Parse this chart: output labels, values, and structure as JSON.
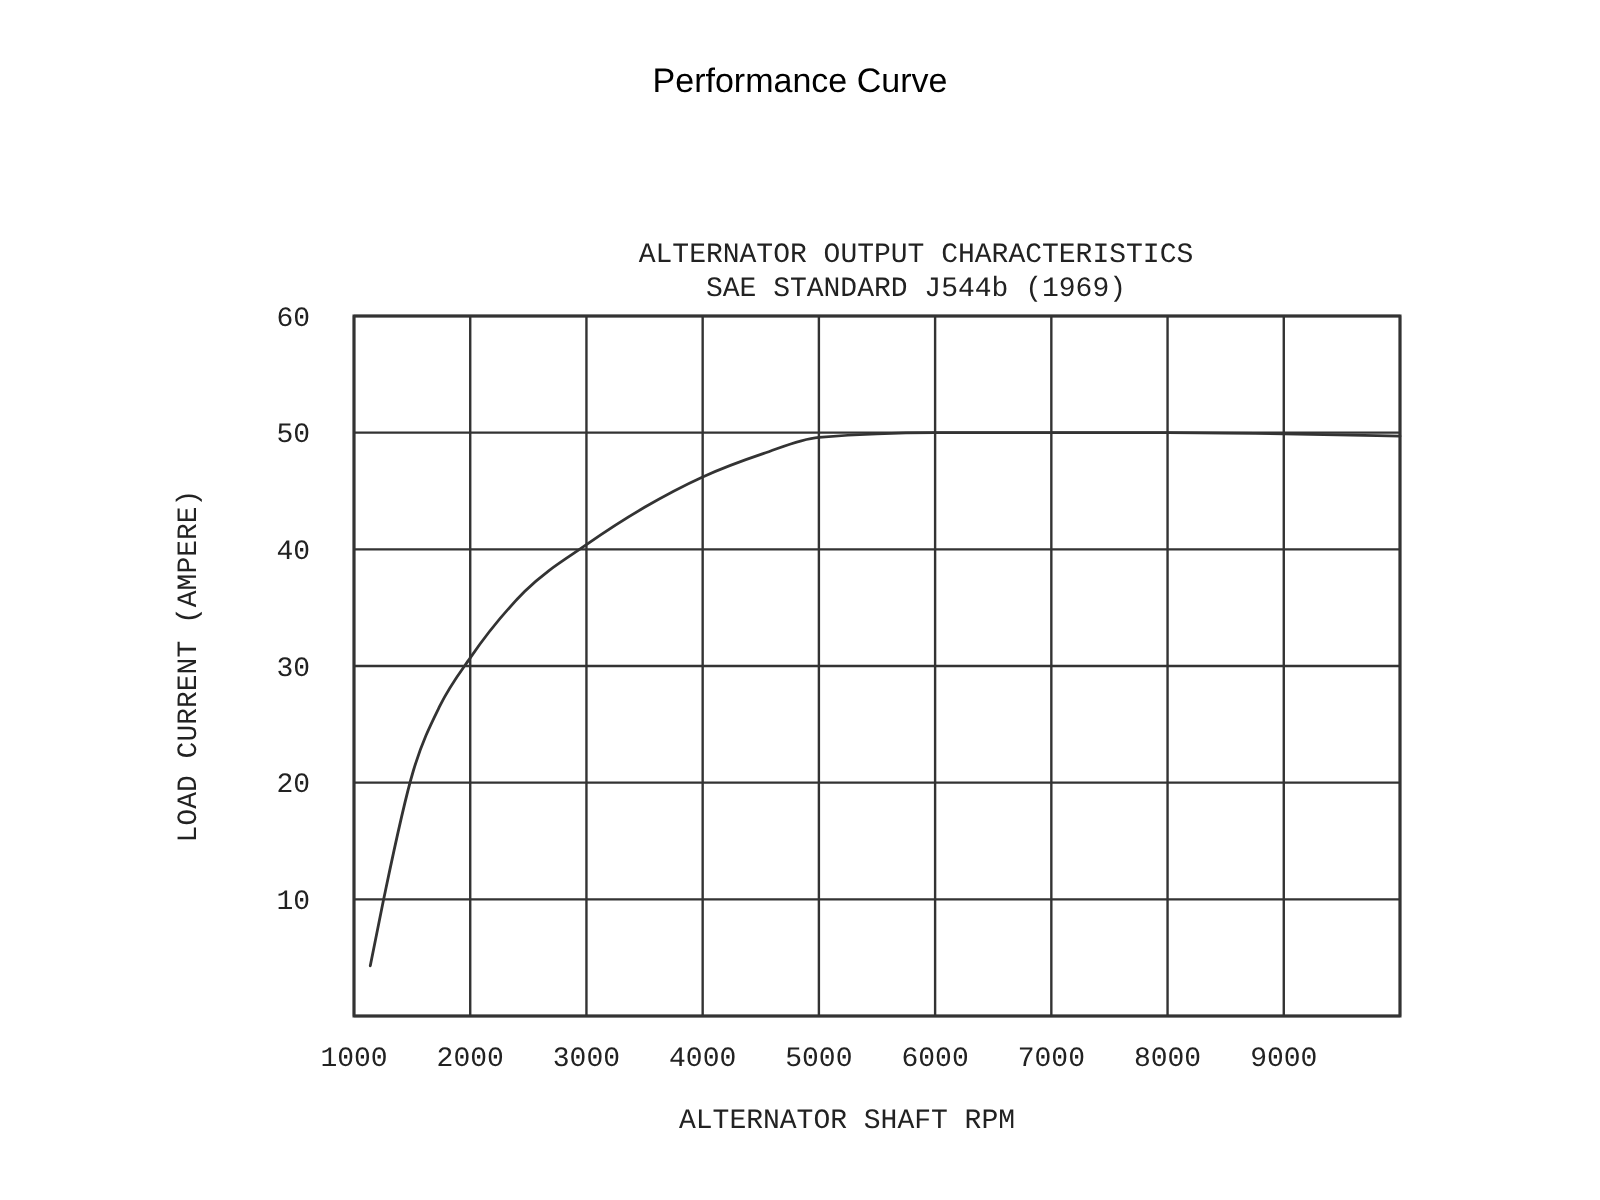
{
  "chart_data": {
    "type": "line",
    "title": "Performance Curve",
    "subtitle": "ALTERNATOR OUTPUT CHARACTERISTICS\nSAE STANDARD J544b (1969)",
    "xlabel": "ALTERNATOR SHAFT RPM",
    "ylabel": "LOAD CURRENT (AMPERE)",
    "x": [
      1140,
      1255,
      1510,
      1740,
      2000,
      2470,
      3000,
      3500,
      4000,
      4520,
      5000,
      6000,
      7000,
      8000,
      9000,
      10000
    ],
    "series": [
      {
        "color": "#333333",
        "values": [
          4.3,
          10,
          21,
          26.6,
          30.7,
          36.4,
          40.4,
          43.6,
          46.2,
          48.2,
          49.6,
          50,
          50,
          50,
          49.9,
          49.7
        ]
      }
    ],
    "xlim": [
      1000,
      10000
    ],
    "xticks": [
      1000,
      2000,
      3000,
      4000,
      5000,
      6000,
      7000,
      8000,
      9000,
      {
        "value": 10000,
        "label": null
      }
    ],
    "ylim": [
      0,
      60
    ],
    "yticks": [
      {
        "value": 0,
        "label": null
      },
      10,
      20,
      30,
      40,
      50,
      60
    ],
    "grid": true,
    "marker": "none",
    "line_style": "solid"
  }
}
